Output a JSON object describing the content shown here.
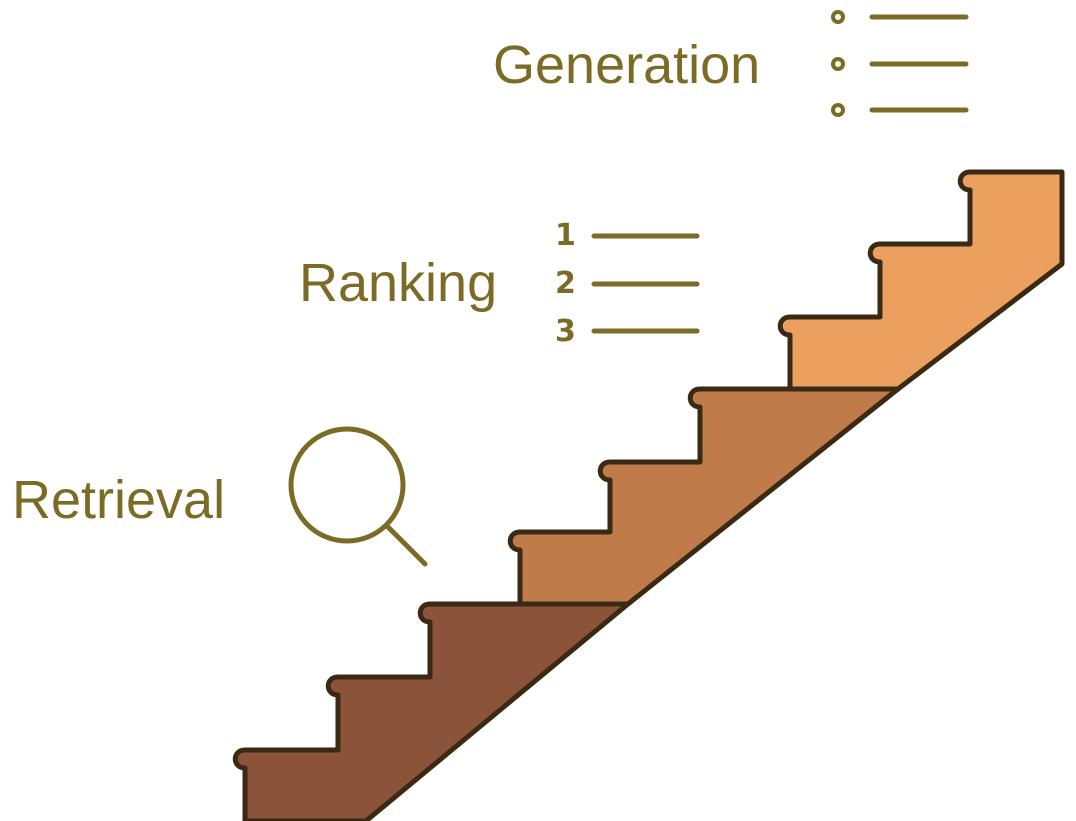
{
  "colors": {
    "text": "#7b6b24",
    "outline": "#3a2a14",
    "retrieval_steps": "#8b5339",
    "ranking_steps": "#bf7c4a",
    "generation_steps": "#eca060"
  },
  "stages": {
    "retrieval": {
      "label": "Retrieval",
      "icon": "magnifier-icon"
    },
    "ranking": {
      "label": "Ranking",
      "icon": "numbered-list-icon",
      "numbers": [
        "1",
        "2",
        "3"
      ]
    },
    "generation": {
      "label": "Generation",
      "icon": "bullet-list-icon"
    }
  }
}
